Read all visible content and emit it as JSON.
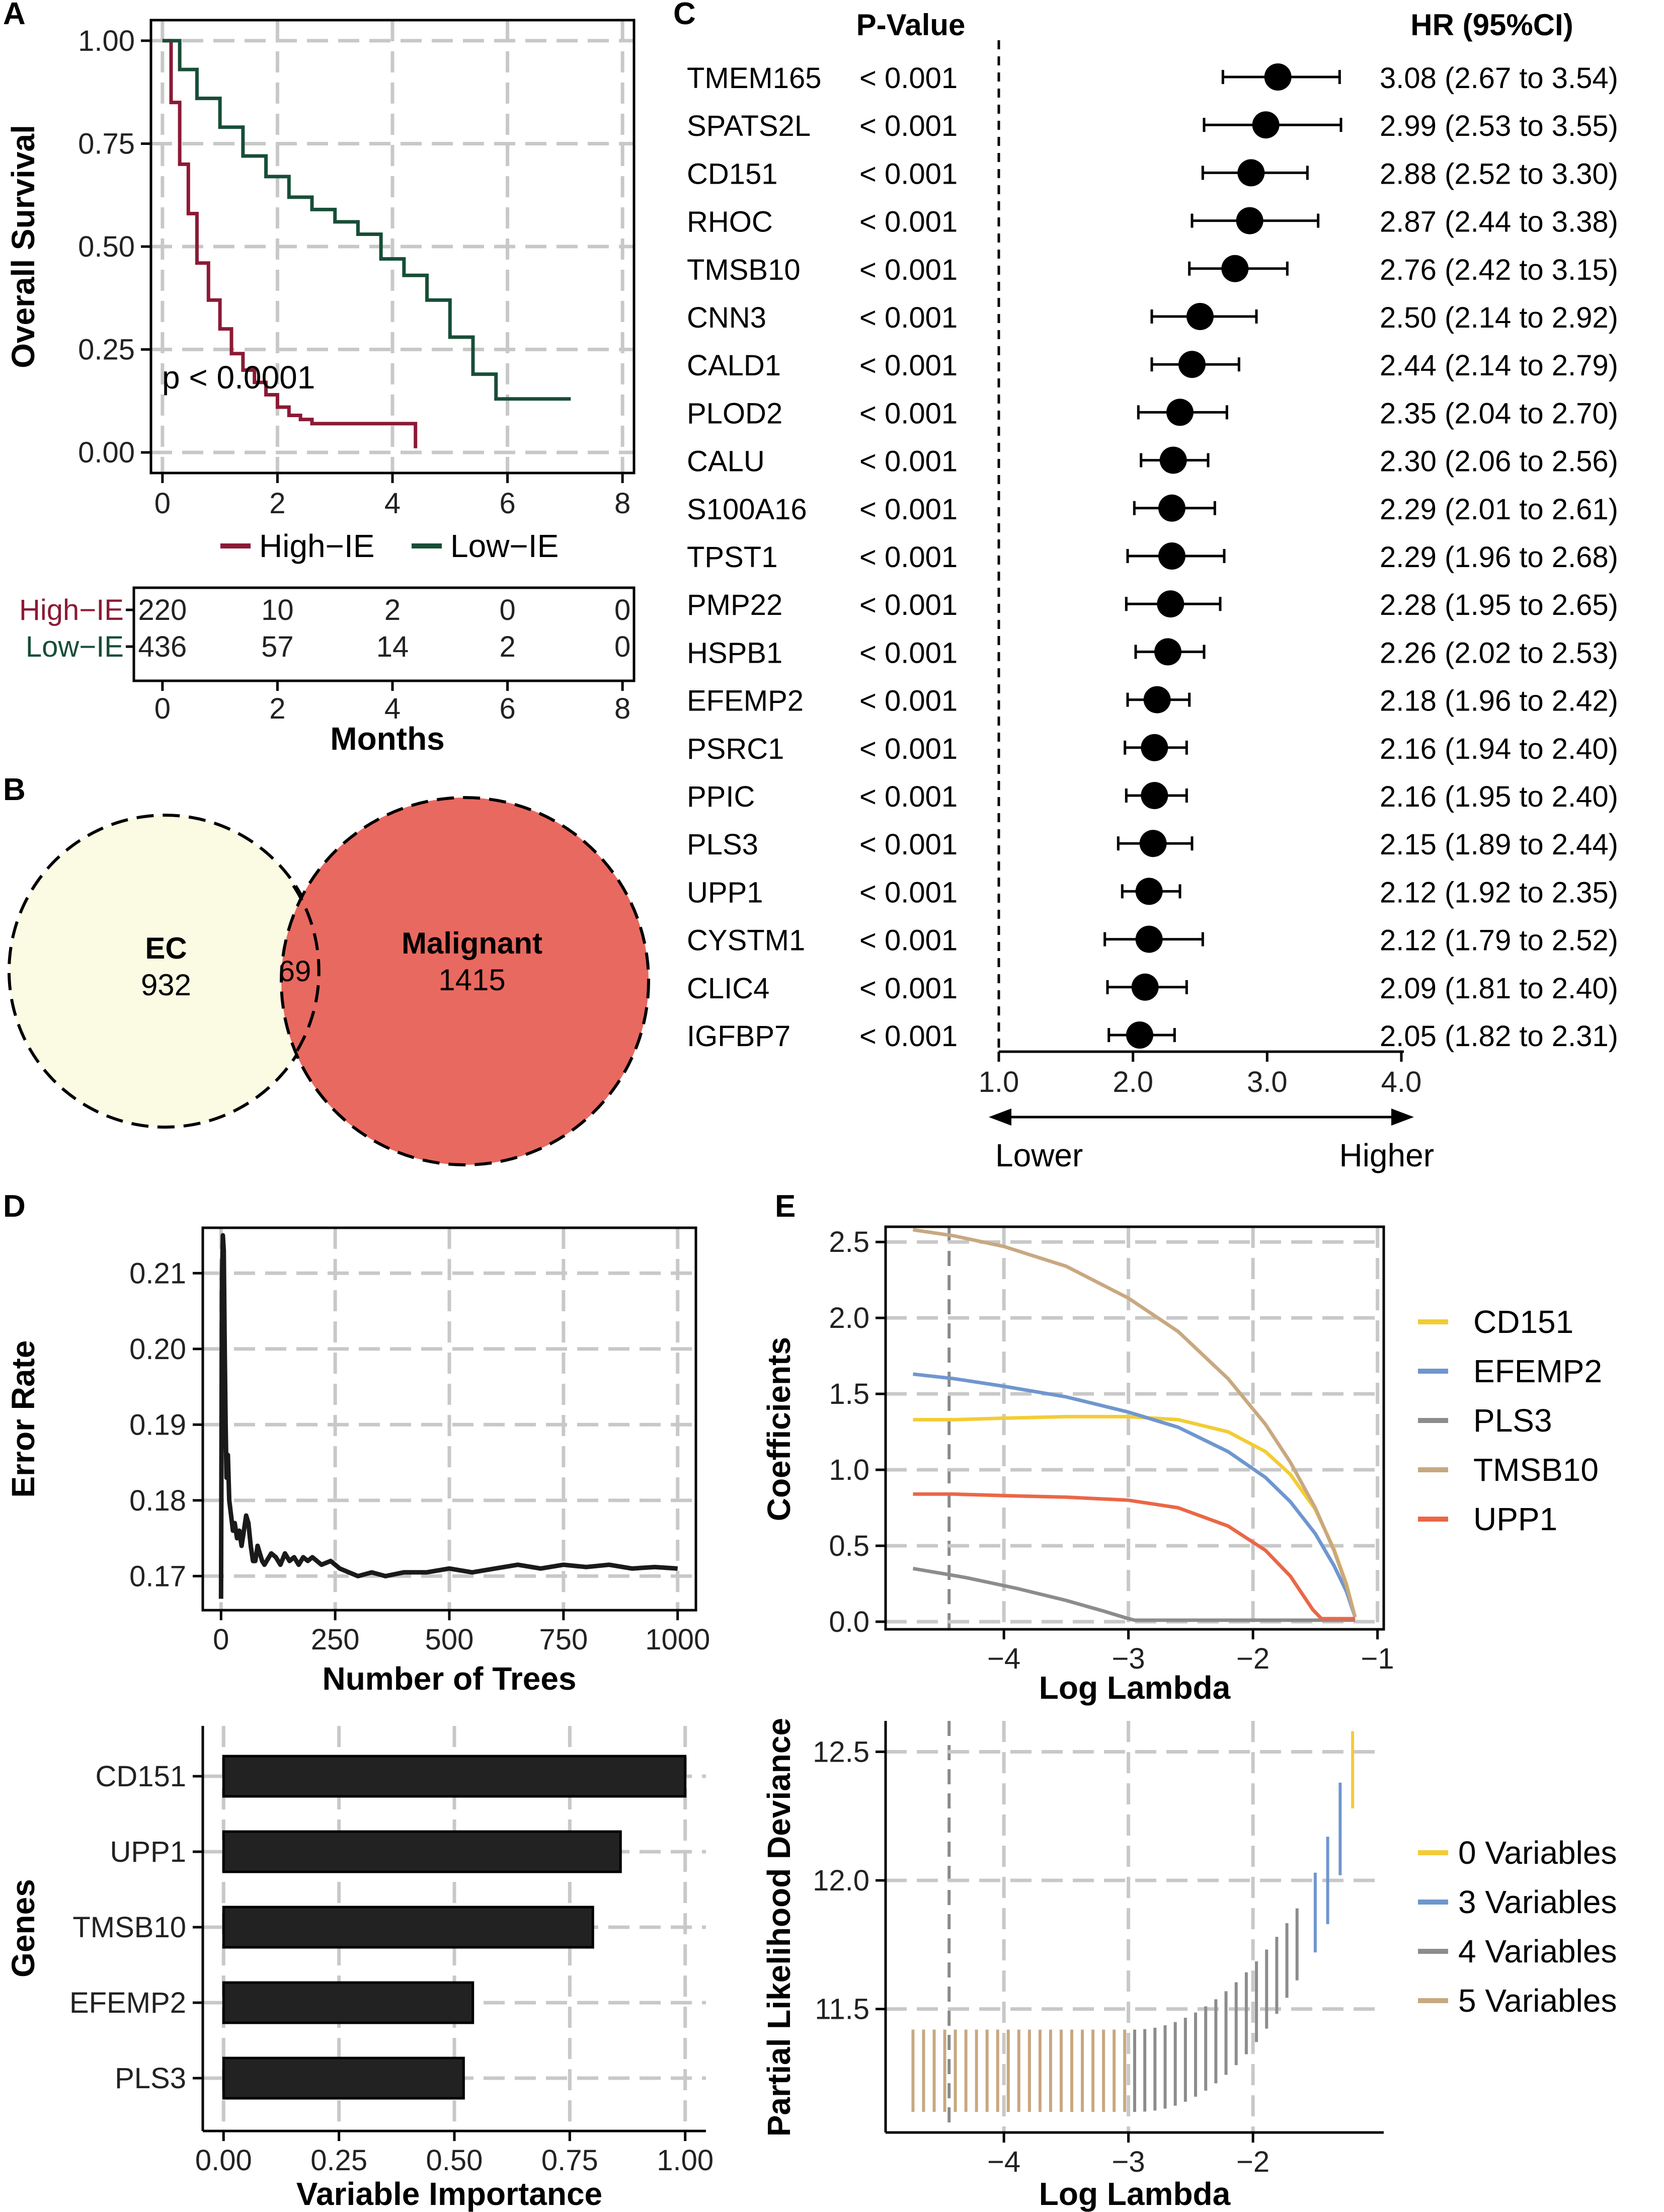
{
  "colors": {
    "high_ie": "#8b1a35",
    "low_ie": "#174e37",
    "ec": "#fbfbe4",
    "malignant": "#e8695f",
    "cd151": "#f3cc35",
    "efemp2": "#6f96cf",
    "pls3": "#8c8c8c",
    "tmsb10": "#c8a880",
    "upp1": "#ea6747"
  },
  "panels": {
    "a": "A",
    "b": "B",
    "c": "C",
    "d": "D",
    "e": "E"
  },
  "chart_data": [
    {
      "id": "A",
      "type": "line",
      "ylabel": "Overall Survival",
      "xlabel": "Months",
      "xlim": [
        0,
        8
      ],
      "ylim": [
        0,
        1
      ],
      "xticks": [
        "0",
        "2",
        "4",
        "6",
        "8"
      ],
      "yticks": [
        "0.00",
        "0.25",
        "0.50",
        "0.75",
        "1.00"
      ],
      "annotation": "p < 0.0001",
      "legend": [
        "High−IE",
        "Low−IE"
      ],
      "series": [
        {
          "name": "High−IE",
          "x": [
            0,
            0.15,
            0.3,
            0.45,
            0.6,
            0.8,
            1.0,
            1.2,
            1.4,
            1.6,
            1.8,
            2.0,
            2.2,
            2.4,
            2.6,
            4.4,
            4.4
          ],
          "y": [
            1,
            0.85,
            0.7,
            0.58,
            0.46,
            0.37,
            0.3,
            0.24,
            0.2,
            0.17,
            0.14,
            0.11,
            0.09,
            0.08,
            0.07,
            0.07,
            0.01
          ]
        },
        {
          "name": "Low−IE",
          "x": [
            0,
            0.3,
            0.6,
            1.0,
            1.4,
            1.8,
            2.2,
            2.6,
            3.0,
            3.4,
            3.8,
            4.2,
            4.6,
            5.0,
            5.4,
            5.8,
            6.2,
            7.1
          ],
          "y": [
            1,
            0.93,
            0.86,
            0.79,
            0.72,
            0.67,
            0.62,
            0.59,
            0.56,
            0.53,
            0.47,
            0.43,
            0.37,
            0.28,
            0.19,
            0.13,
            0.13,
            0.13
          ]
        }
      ],
      "risk_table": {
        "rows": [
          {
            "label": "High−IE",
            "values": [
              "220",
              "10",
              "2",
              "0",
              "0"
            ]
          },
          {
            "label": "Low−IE",
            "values": [
              "436",
              "57",
              "14",
              "2",
              "0"
            ]
          }
        ],
        "xticks": [
          "0",
          "2",
          "4",
          "6",
          "8"
        ]
      }
    },
    {
      "id": "B",
      "type": "venn",
      "sets": [
        {
          "name": "EC",
          "value": "932"
        },
        {
          "name": "Malignant",
          "value": "1415"
        }
      ],
      "overlap": "69"
    },
    {
      "id": "C",
      "type": "forest",
      "header_p": "P-Value",
      "header_hr": "HR (95%CI)",
      "xlim": [
        1,
        4
      ],
      "xticks": [
        "1.0",
        "2.0",
        "3.0",
        "4.0"
      ],
      "lower_label": "Lower",
      "higher_label": "Higher",
      "rows": [
        {
          "gene": "TMEM165",
          "p": "< 0.001",
          "hr": 3.08,
          "lo": 2.67,
          "hi": 3.54,
          "text": "3.08 (2.67 to 3.54)"
        },
        {
          "gene": "SPATS2L",
          "p": "< 0.001",
          "hr": 2.99,
          "lo": 2.53,
          "hi": 3.55,
          "text": "2.99 (2.53 to 3.55)"
        },
        {
          "gene": "CD151",
          "p": "< 0.001",
          "hr": 2.88,
          "lo": 2.52,
          "hi": 3.3,
          "text": "2.88 (2.52 to 3.30)"
        },
        {
          "gene": "RHOC",
          "p": "< 0.001",
          "hr": 2.87,
          "lo": 2.44,
          "hi": 3.38,
          "text": "2.87 (2.44 to 3.38)"
        },
        {
          "gene": "TMSB10",
          "p": "< 0.001",
          "hr": 2.76,
          "lo": 2.42,
          "hi": 3.15,
          "text": "2.76 (2.42 to 3.15)"
        },
        {
          "gene": "CNN3",
          "p": "< 0.001",
          "hr": 2.5,
          "lo": 2.14,
          "hi": 2.92,
          "text": "2.50 (2.14 to 2.92)"
        },
        {
          "gene": "CALD1",
          "p": "< 0.001",
          "hr": 2.44,
          "lo": 2.14,
          "hi": 2.79,
          "text": "2.44 (2.14 to 2.79)"
        },
        {
          "gene": "PLOD2",
          "p": "< 0.001",
          "hr": 2.35,
          "lo": 2.04,
          "hi": 2.7,
          "text": "2.35 (2.04 to 2.70)"
        },
        {
          "gene": "CALU",
          "p": "< 0.001",
          "hr": 2.3,
          "lo": 2.06,
          "hi": 2.56,
          "text": "2.30 (2.06 to 2.56)"
        },
        {
          "gene": "S100A16",
          "p": "< 0.001",
          "hr": 2.29,
          "lo": 2.01,
          "hi": 2.61,
          "text": "2.29 (2.01 to 2.61)"
        },
        {
          "gene": "TPST1",
          "p": "< 0.001",
          "hr": 2.29,
          "lo": 1.96,
          "hi": 2.68,
          "text": "2.29 (1.96 to 2.68)"
        },
        {
          "gene": "PMP22",
          "p": "< 0.001",
          "hr": 2.28,
          "lo": 1.95,
          "hi": 2.65,
          "text": "2.28 (1.95 to 2.65)"
        },
        {
          "gene": "HSPB1",
          "p": "< 0.001",
          "hr": 2.26,
          "lo": 2.02,
          "hi": 2.53,
          "text": "2.26 (2.02 to 2.53)"
        },
        {
          "gene": "EFEMP2",
          "p": "< 0.001",
          "hr": 2.18,
          "lo": 1.96,
          "hi": 2.42,
          "text": "2.18 (1.96 to 2.42)"
        },
        {
          "gene": "PSRC1",
          "p": "< 0.001",
          "hr": 2.16,
          "lo": 1.94,
          "hi": 2.4,
          "text": "2.16 (1.94 to 2.40)"
        },
        {
          "gene": "PPIC",
          "p": "< 0.001",
          "hr": 2.16,
          "lo": 1.95,
          "hi": 2.4,
          "text": "2.16 (1.95 to 2.40)"
        },
        {
          "gene": "PLS3",
          "p": "< 0.001",
          "hr": 2.15,
          "lo": 1.89,
          "hi": 2.44,
          "text": "2.15 (1.89 to 2.44)"
        },
        {
          "gene": "UPP1",
          "p": "< 0.001",
          "hr": 2.12,
          "lo": 1.92,
          "hi": 2.35,
          "text": "2.12 (1.92 to 2.35)"
        },
        {
          "gene": "CYSTM1",
          "p": "< 0.001",
          "hr": 2.12,
          "lo": 1.79,
          "hi": 2.52,
          "text": "2.12 (1.79 to 2.52)"
        },
        {
          "gene": "CLIC4",
          "p": "< 0.001",
          "hr": 2.09,
          "lo": 1.81,
          "hi": 2.4,
          "text": "2.09 (1.81 to 2.40)"
        },
        {
          "gene": "IGFBP7",
          "p": "< 0.001",
          "hr": 2.05,
          "lo": 1.82,
          "hi": 2.31,
          "text": "2.05 (1.82 to 2.31)"
        }
      ]
    },
    {
      "id": "D1",
      "type": "line",
      "xlabel": "Number of Trees",
      "ylabel": "Error Rate",
      "xlim": [
        -40,
        1040
      ],
      "ylim": [
        0.1655,
        0.216
      ],
      "xticks": [
        "0",
        "250",
        "500",
        "750",
        "1000"
      ],
      "yticks": [
        "0.17",
        "0.18",
        "0.19",
        "0.20",
        "0.21"
      ],
      "x": [
        0,
        2,
        4,
        6,
        8,
        10,
        12,
        15,
        18,
        22,
        26,
        30,
        35,
        40,
        45,
        50,
        55,
        60,
        65,
        70,
        75,
        80,
        85,
        90,
        95,
        100,
        110,
        120,
        130,
        140,
        150,
        160,
        170,
        180,
        190,
        200,
        220,
        240,
        260,
        280,
        300,
        330,
        360,
        400,
        450,
        500,
        550,
        600,
        650,
        700,
        750,
        800,
        850,
        900,
        950,
        1000
      ],
      "y": [
        0.167,
        0.209,
        0.215,
        0.213,
        0.2,
        0.19,
        0.183,
        0.186,
        0.18,
        0.178,
        0.176,
        0.177,
        0.175,
        0.176,
        0.174,
        0.176,
        0.178,
        0.177,
        0.174,
        0.172,
        0.172,
        0.174,
        0.173,
        0.172,
        0.1715,
        0.172,
        0.173,
        0.1725,
        0.1715,
        0.173,
        0.172,
        0.1725,
        0.1715,
        0.1725,
        0.172,
        0.1725,
        0.1715,
        0.172,
        0.171,
        0.1705,
        0.17,
        0.1705,
        0.17,
        0.1705,
        0.1705,
        0.171,
        0.1705,
        0.171,
        0.1715,
        0.171,
        0.1715,
        0.1712,
        0.1715,
        0.171,
        0.1712,
        0.171
      ]
    },
    {
      "id": "D2",
      "type": "bar",
      "orientation": "horizontal",
      "xlabel": "Variable Importance",
      "ylabel": "Genes",
      "xlim": [
        -0.045,
        1.045
      ],
      "xticks": [
        "0.00",
        "0.25",
        "0.50",
        "0.75",
        "1.00"
      ],
      "categories": [
        "CD151",
        "UPP1",
        "TMSB10",
        "EFEMP2",
        "PLS3"
      ],
      "values": [
        1.0,
        0.86,
        0.8,
        0.54,
        0.52
      ]
    },
    {
      "id": "E1",
      "type": "line",
      "xlabel": "Log Lambda",
      "ylabel": "Coefficients",
      "xlim": [
        -4.95,
        -0.95
      ],
      "ylim": [
        -0.05,
        2.6
      ],
      "xticks": [
        "−4",
        "−3",
        "−2",
        "−1"
      ],
      "yticks": [
        "0.0",
        "0.5",
        "1.0",
        "1.5",
        "2.0",
        "2.5"
      ],
      "legend": [
        "CD151",
        "EFEMP2",
        "PLS3",
        "TMSB10",
        "UPP1"
      ],
      "series": [
        {
          "name": "CD151",
          "x": [
            -4.73,
            -4.4,
            -4.0,
            -3.5,
            -3.0,
            -2.6,
            -2.2,
            -1.9,
            -1.7,
            -1.5,
            -1.35,
            -1.25,
            -1.18
          ],
          "y": [
            1.33,
            1.33,
            1.34,
            1.35,
            1.35,
            1.33,
            1.25,
            1.12,
            0.97,
            0.74,
            0.48,
            0.25,
            0.03
          ]
        },
        {
          "name": "EFEMP2",
          "x": [
            -4.73,
            -4.4,
            -4.0,
            -3.5,
            -3.0,
            -2.6,
            -2.2,
            -1.9,
            -1.7,
            -1.5,
            -1.35,
            -1.25,
            -1.18
          ],
          "y": [
            1.63,
            1.6,
            1.55,
            1.48,
            1.38,
            1.28,
            1.12,
            0.95,
            0.79,
            0.58,
            0.37,
            0.2,
            0.03
          ]
        },
        {
          "name": "PLS3",
          "x": [
            -4.73,
            -4.3,
            -3.9,
            -3.5,
            -3.2,
            -3.0,
            -2.95,
            -2.0,
            -1.18
          ],
          "y": [
            0.35,
            0.29,
            0.22,
            0.14,
            0.07,
            0.02,
            0.01,
            0.01,
            0.01
          ]
        },
        {
          "name": "TMSB10",
          "x": [
            -4.73,
            -4.4,
            -4.0,
            -3.5,
            -3.0,
            -2.6,
            -2.2,
            -1.9,
            -1.7,
            -1.5,
            -1.35,
            -1.25,
            -1.18
          ],
          "y": [
            2.58,
            2.54,
            2.47,
            2.34,
            2.13,
            1.91,
            1.6,
            1.3,
            1.05,
            0.75,
            0.47,
            0.24,
            0.03
          ]
        },
        {
          "name": "UPP1",
          "x": [
            -4.73,
            -4.4,
            -4.0,
            -3.5,
            -3.0,
            -2.6,
            -2.2,
            -1.9,
            -1.7,
            -1.52,
            -1.45,
            -1.18
          ],
          "y": [
            0.84,
            0.84,
            0.83,
            0.82,
            0.8,
            0.75,
            0.63,
            0.47,
            0.3,
            0.08,
            0.02,
            0.02
          ]
        }
      ]
    },
    {
      "id": "E2",
      "type": "errorbar",
      "xlabel": "Log Lambda",
      "ylabel": "Partial Likelihood Deviance",
      "xlim": [
        -4.95,
        -0.95
      ],
      "ylim": [
        11.02,
        12.62
      ],
      "xticks": [
        "−4",
        "−3",
        "−2"
      ],
      "yticks": [
        "11.5",
        "12.0",
        "12.5"
      ],
      "legend": [
        "0 Variables",
        "3 Variables",
        "4 Variables",
        "5 Variables"
      ],
      "lambda_min": -4.44,
      "lambda_1se": -2.97
    }
  ]
}
